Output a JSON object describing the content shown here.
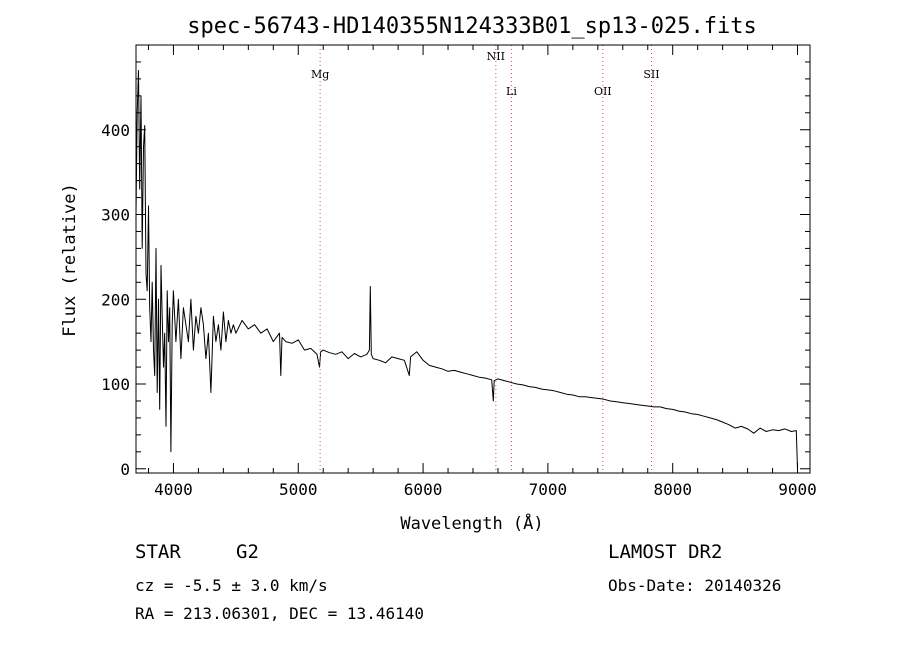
{
  "chart_data": {
    "type": "line",
    "title": "spec-56743-HD140355N124333B01_sp13-025.fits",
    "xlabel": "Wavelength (Å)",
    "ylabel": "Flux (relative)",
    "xlim": [
      3700,
      9100
    ],
    "ylim": [
      -5,
      500
    ],
    "xticks": [
      4000,
      5000,
      6000,
      7000,
      8000,
      9000
    ],
    "yticks": [
      0,
      100,
      200,
      300,
      400
    ],
    "grid": false,
    "line_color": "#000000",
    "marker_color": "#d9534f",
    "series": [
      {
        "x": [
          3700,
          3710,
          3720,
          3730,
          3740,
          3750,
          3760,
          3770,
          3780,
          3790,
          3800,
          3810,
          3820,
          3830,
          3840,
          3850,
          3860,
          3870,
          3880,
          3890,
          3900,
          3910,
          3920,
          3930,
          3940,
          3950,
          3960,
          3970,
          3980,
          3990,
          4000,
          4020,
          4040,
          4060,
          4080,
          4100,
          4120,
          4140,
          4160,
          4180,
          4200,
          4220,
          4240,
          4260,
          4280,
          4300,
          4320,
          4340,
          4360,
          4380,
          4400,
          4420,
          4440,
          4460,
          4480,
          4500,
          4550,
          4600,
          4650,
          4700,
          4750,
          4800,
          4850,
          4860,
          4870,
          4900,
          4950,
          5000,
          5050,
          5100,
          5150,
          5170,
          5180,
          5200,
          5250,
          5300,
          5350,
          5400,
          5450,
          5500,
          5550,
          5570,
          5577,
          5585,
          5600,
          5650,
          5700,
          5750,
          5800,
          5850,
          5890,
          5900,
          5950,
          6000,
          6050,
          6100,
          6150,
          6200,
          6250,
          6300,
          6350,
          6400,
          6450,
          6500,
          6550,
          6563,
          6570,
          6600,
          6650,
          6700,
          6750,
          6800,
          6850,
          6900,
          6950,
          7000,
          7050,
          7100,
          7150,
          7200,
          7250,
          7300,
          7350,
          7400,
          7450,
          7500,
          7550,
          7600,
          7650,
          7700,
          7750,
          7800,
          7850,
          7900,
          7950,
          8000,
          8050,
          8100,
          8150,
          8200,
          8250,
          8300,
          8350,
          8400,
          8450,
          8500,
          8550,
          8600,
          8650,
          8700,
          8750,
          8800,
          8850,
          8900,
          8950,
          8990,
          9000
        ],
        "y": [
          300,
          420,
          470,
          330,
          440,
          260,
          380,
          405,
          230,
          210,
          310,
          190,
          150,
          220,
          140,
          110,
          260,
          90,
          200,
          70,
          240,
          180,
          120,
          160,
          50,
          210,
          150,
          190,
          20,
          170,
          210,
          150,
          200,
          130,
          190,
          170,
          150,
          200,
          140,
          180,
          160,
          190,
          170,
          130,
          160,
          90,
          180,
          150,
          170,
          140,
          185,
          150,
          175,
          160,
          170,
          160,
          175,
          165,
          170,
          160,
          165,
          150,
          160,
          110,
          155,
          150,
          148,
          152,
          140,
          142,
          135,
          120,
          138,
          140,
          137,
          135,
          138,
          130,
          136,
          132,
          135,
          140,
          215,
          135,
          130,
          128,
          125,
          132,
          130,
          128,
          110,
          132,
          138,
          128,
          122,
          120,
          118,
          115,
          116,
          114,
          112,
          110,
          108,
          107,
          105,
          80,
          104,
          106,
          104,
          102,
          100,
          99,
          97,
          96,
          94,
          93,
          92,
          90,
          88,
          87,
          85,
          85,
          84,
          83,
          82,
          80,
          79,
          78,
          77,
          76,
          75,
          74,
          73,
          73,
          71,
          70,
          68,
          67,
          65,
          64,
          62,
          60,
          58,
          55,
          52,
          48,
          50,
          47,
          42,
          48,
          44,
          46,
          45,
          47,
          44,
          45,
          0
        ]
      }
    ],
    "lines": [
      {
        "name": "Mg",
        "wavelength": 5175
      },
      {
        "name": "NII",
        "wavelength": 6583
      },
      {
        "name": "Li",
        "wavelength": 6708
      },
      {
        "name": "OII",
        "wavelength": 7440
      },
      {
        "name": "SII",
        "wavelength": 7830
      }
    ]
  },
  "info": {
    "object_class": "STAR",
    "subclass": "G2",
    "survey": "LAMOST DR2",
    "cz": "cz = -5.5 ± 3.0 km/s",
    "obs_date": "Obs-Date: 20140326",
    "coords": "RA = 213.06301, DEC =  13.46140"
  }
}
